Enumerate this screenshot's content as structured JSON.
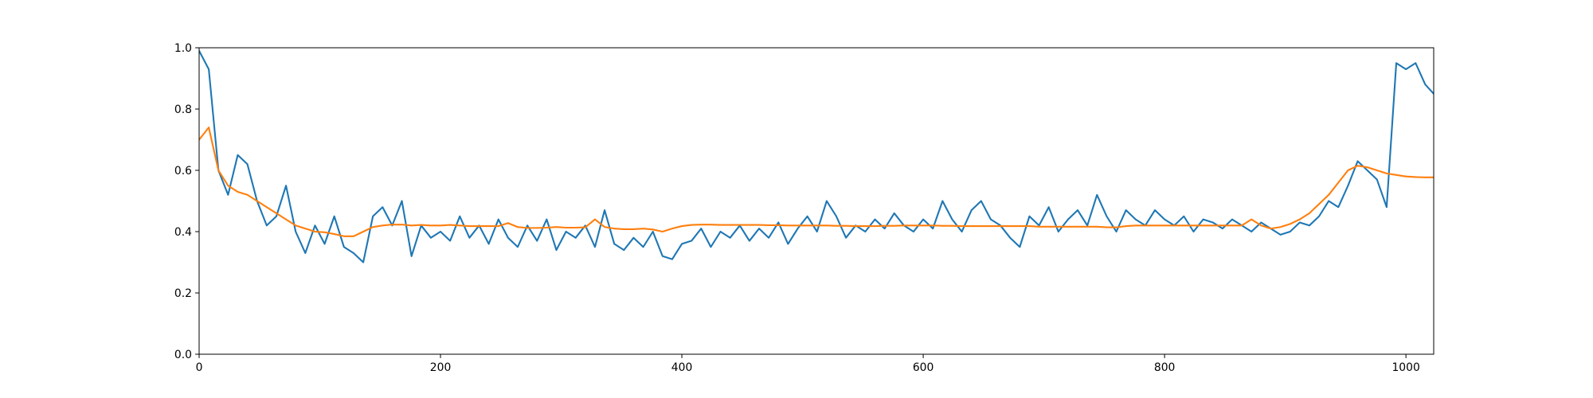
{
  "chart_data": {
    "type": "line",
    "x": [
      0,
      8,
      16,
      24,
      32,
      40,
      48,
      56,
      64,
      72,
      80,
      88,
      96,
      104,
      112,
      120,
      128,
      136,
      144,
      152,
      160,
      168,
      176,
      184,
      192,
      200,
      208,
      216,
      224,
      232,
      240,
      248,
      256,
      264,
      272,
      280,
      288,
      296,
      304,
      312,
      320,
      328,
      336,
      344,
      352,
      360,
      368,
      376,
      384,
      392,
      400,
      408,
      416,
      424,
      432,
      440,
      448,
      456,
      464,
      472,
      480,
      488,
      496,
      504,
      512,
      520,
      528,
      536,
      544,
      552,
      560,
      568,
      576,
      584,
      592,
      600,
      608,
      616,
      624,
      632,
      640,
      648,
      656,
      664,
      672,
      680,
      688,
      696,
      704,
      712,
      720,
      728,
      736,
      744,
      752,
      760,
      768,
      776,
      784,
      792,
      800,
      808,
      816,
      824,
      832,
      840,
      848,
      856,
      864,
      872,
      880,
      888,
      896,
      904,
      912,
      920,
      928,
      936,
      944,
      952,
      960,
      968,
      976,
      984,
      992,
      1000,
      1008,
      1016,
      1023
    ],
    "series": [
      {
        "color": "#1f77b4",
        "values": [
          0.99,
          0.93,
          0.6,
          0.52,
          0.65,
          0.62,
          0.5,
          0.42,
          0.45,
          0.55,
          0.4,
          0.33,
          0.42,
          0.36,
          0.45,
          0.35,
          0.33,
          0.3,
          0.45,
          0.48,
          0.42,
          0.5,
          0.32,
          0.42,
          0.38,
          0.4,
          0.37,
          0.45,
          0.38,
          0.42,
          0.36,
          0.44,
          0.38,
          0.35,
          0.42,
          0.37,
          0.44,
          0.34,
          0.4,
          0.38,
          0.42,
          0.35,
          0.47,
          0.36,
          0.34,
          0.38,
          0.35,
          0.4,
          0.32,
          0.31,
          0.36,
          0.37,
          0.41,
          0.35,
          0.4,
          0.38,
          0.42,
          0.37,
          0.41,
          0.38,
          0.43,
          0.36,
          0.41,
          0.45,
          0.4,
          0.5,
          0.45,
          0.38,
          0.42,
          0.4,
          0.44,
          0.41,
          0.46,
          0.42,
          0.4,
          0.44,
          0.41,
          0.5,
          0.44,
          0.4,
          0.47,
          0.5,
          0.44,
          0.42,
          0.38,
          0.35,
          0.45,
          0.42,
          0.48,
          0.4,
          0.44,
          0.47,
          0.42,
          0.52,
          0.45,
          0.4,
          0.47,
          0.44,
          0.42,
          0.47,
          0.44,
          0.42,
          0.45,
          0.4,
          0.44,
          0.43,
          0.41,
          0.44,
          0.42,
          0.4,
          0.43,
          0.41,
          0.39,
          0.4,
          0.43,
          0.42,
          0.45,
          0.5,
          0.48,
          0.55,
          0.63,
          0.6,
          0.57,
          0.48,
          0.95,
          0.93,
          0.95,
          0.88,
          0.85
        ]
      },
      {
        "color": "#ff7f0e",
        "values": [
          0.7,
          0.74,
          0.6,
          0.55,
          0.53,
          0.52,
          0.5,
          0.48,
          0.46,
          0.44,
          0.42,
          0.41,
          0.4,
          0.398,
          0.392,
          0.385,
          0.385,
          0.4,
          0.415,
          0.42,
          0.423,
          0.423,
          0.42,
          0.422,
          0.42,
          0.42,
          0.422,
          0.42,
          0.418,
          0.418,
          0.418,
          0.418,
          0.428,
          0.415,
          0.412,
          0.412,
          0.413,
          0.415,
          0.413,
          0.413,
          0.414,
          0.44,
          0.415,
          0.41,
          0.408,
          0.408,
          0.41,
          0.407,
          0.4,
          0.41,
          0.418,
          0.422,
          0.423,
          0.423,
          0.422,
          0.422,
          0.422,
          0.422,
          0.422,
          0.421,
          0.421,
          0.42,
          0.42,
          0.42,
          0.42,
          0.42,
          0.419,
          0.419,
          0.418,
          0.418,
          0.418,
          0.419,
          0.419,
          0.42,
          0.42,
          0.42,
          0.42,
          0.419,
          0.419,
          0.418,
          0.418,
          0.418,
          0.418,
          0.418,
          0.418,
          0.418,
          0.418,
          0.416,
          0.416,
          0.416,
          0.416,
          0.416,
          0.416,
          0.416,
          0.414,
          0.414,
          0.418,
          0.42,
          0.42,
          0.42,
          0.42,
          0.42,
          0.42,
          0.42,
          0.42,
          0.42,
          0.42,
          0.42,
          0.42,
          0.44,
          0.42,
          0.41,
          0.415,
          0.425,
          0.44,
          0.46,
          0.49,
          0.52,
          0.56,
          0.6,
          0.615,
          0.61,
          0.6,
          0.59,
          0.585,
          0.58,
          0.578,
          0.577,
          0.577
        ]
      }
    ],
    "xlim": [
      0,
      1023
    ],
    "xticks": [
      0,
      200,
      400,
      600,
      800,
      1000
    ],
    "ylim": [
      0,
      1
    ],
    "yticks": [
      {
        "value": 0,
        "label": "0.0"
      },
      {
        "value": 0.2,
        "label": "0.2"
      },
      {
        "value": 0.4,
        "label": "0.4"
      },
      {
        "value": 0.6,
        "label": "0.6"
      },
      {
        "value": 0.8,
        "label": "0.8"
      },
      {
        "value": 1,
        "label": "1.0"
      }
    ],
    "grid": false
  }
}
